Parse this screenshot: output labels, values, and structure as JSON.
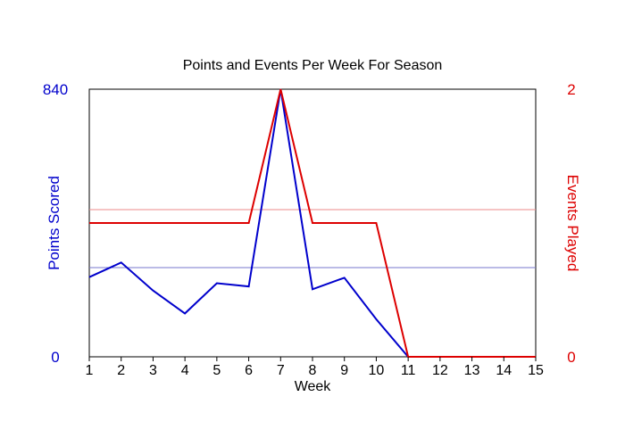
{
  "chart_data": {
    "type": "line",
    "title": "Points and Events Per Week For Season",
    "xlabel": "Week",
    "ylabel_left": "Points Scored",
    "ylabel_right": "Events Played",
    "x": [
      1,
      2,
      3,
      4,
      5,
      6,
      7,
      8,
      9,
      10,
      11,
      12,
      13,
      14,
      15
    ],
    "ylim_left": [
      0,
      840
    ],
    "ylim_right": [
      0,
      2
    ],
    "left_tick_labels": [
      "0",
      "840"
    ],
    "right_tick_labels": [
      "0",
      "2"
    ],
    "series": [
      {
        "axis": "left",
        "color": "#0000cc",
        "values": [
          250,
          296,
          208,
          136,
          231,
          221,
          840,
          212,
          248,
          118,
          0,
          0,
          0,
          0,
          0
        ]
      },
      {
        "axis": "right",
        "color": "#dd0000",
        "values": [
          1,
          1,
          1,
          1,
          1,
          1,
          2,
          1,
          1,
          1,
          0,
          0,
          0,
          0,
          0
        ]
      }
    ],
    "reference_lines": [
      {
        "axis": "left",
        "value": 280,
        "color": "#7777cc"
      },
      {
        "axis": "right",
        "value": 1.1,
        "color": "#ee8888"
      }
    ],
    "grid": false,
    "legend": "none"
  }
}
